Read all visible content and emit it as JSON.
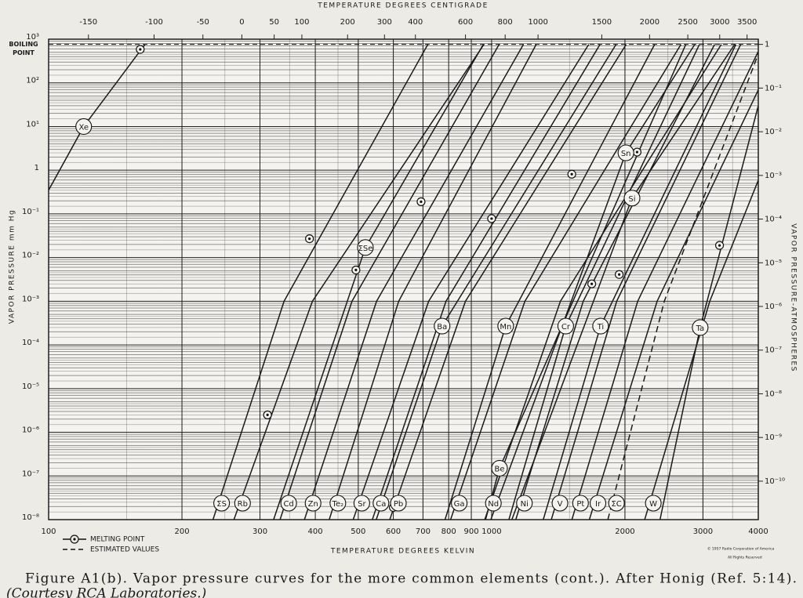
{
  "chart_data": {
    "type": "line",
    "title": "TEMPERATURE DEGREES CENTIGRADE",
    "x_label": "TEMPERATURE DEGREES KELVIN",
    "y_label": "VAPOR PRESSURE mm Hg",
    "y2_label": "VAPOR PRESSURE-ATMOSPHERES",
    "x_scale": "log",
    "y_scale": "log",
    "y2_scale": "log",
    "x2_scale": "log",
    "xlim": [
      100,
      4000
    ],
    "xticks": [
      100,
      200,
      300,
      400,
      500,
      600,
      700,
      800,
      900,
      1000,
      2000,
      3000,
      4000
    ],
    "x2lim": [
      -173,
      3727
    ],
    "x2ticks": [
      -150,
      -100,
      -50,
      0,
      50,
      100,
      200,
      300,
      400,
      600,
      800,
      1000,
      1500,
      2000,
      2500,
      3000,
      3500
    ],
    "ylim": [
      1e-08,
      1000
    ],
    "yticks": [
      {
        "value": 1e-08,
        "label": "10⁻⁸"
      },
      {
        "value": 1e-07,
        "label": "10⁻⁷"
      },
      {
        "value": 1e-06,
        "label": "10⁻⁶"
      },
      {
        "value": 1e-05,
        "label": "10⁻⁵"
      },
      {
        "value": 0.0001,
        "label": "10⁻⁴"
      },
      {
        "value": 0.001,
        "label": "10⁻³"
      },
      {
        "value": 0.01,
        "label": "10⁻²"
      },
      {
        "value": 0.1,
        "label": "10⁻¹"
      },
      1,
      {
        "value": 10,
        "label": "10¹"
      },
      {
        "value": 100,
        "label": "10²"
      },
      {
        "value": 1000,
        "label": "10³"
      }
    ],
    "y2lim": [
      1.316e-11,
      1.316
    ],
    "y2ticks": [
      1,
      {
        "value": 0.1,
        "label": "10⁻¹"
      },
      {
        "value": 0.01,
        "label": "10⁻²"
      },
      {
        "value": 0.001,
        "label": "10⁻³"
      },
      {
        "value": 0.0001,
        "label": "10⁻⁴"
      },
      {
        "value": 1e-05,
        "label": "10⁻⁵"
      },
      {
        "value": 1e-06,
        "label": "10⁻⁶"
      },
      {
        "value": 1e-07,
        "label": "10⁻⁷"
      },
      {
        "value": 1e-08,
        "label": "10⁻⁸"
      },
      {
        "value": 1e-09,
        "label": "10⁻⁹"
      },
      {
        "value": 1e-10,
        "label": "10⁻¹⁰"
      }
    ],
    "grid": true,
    "minor_grid": true,
    "color": "#1a1a1a",
    "boiling_point": {
      "label": [
        "BOILING",
        "POINT"
      ],
      "y2": 1
    },
    "legend": [
      "MELTING POINT",
      "ESTIMATED VALUES"
    ],
    "copyright": [
      "© 1957 Radio Corporation of America",
      "All Rights Reserved"
    ],
    "caption": [
      "Figure A1(b). Vapor pressure curves for the more common elements (cont.). After Honig (Ref. 5:14).",
      "(Courtesy RCA Laboratories.)"
    ],
    "series": [
      {
        "name": "Xe",
        "x": [
          100,
          120,
          165
        ],
        "values": [
          0.35,
          10,
          760
        ],
        "label_placement": "curve",
        "melting_point": {
          "x": 161,
          "y": 585
        }
      },
      {
        "name": "ΣS",
        "x": [
          235,
          340,
          718
        ],
        "values": [
          1e-08,
          0.001,
          760
        ],
        "label_placement": "bottom",
        "melting_point": {
          "x": 388,
          "y": 0.027
        }
      },
      {
        "name": "Rb",
        "x": [
          262,
          394,
          961
        ],
        "values": [
          1e-08,
          0.001,
          760
        ],
        "label_placement": "bottom",
        "melting_point": {
          "x": 312,
          "y": 2.5e-06
        }
      },
      {
        "name": "Cd",
        "x": [
          333,
          484,
          1040
        ],
        "values": [
          1e-08,
          0.001,
          760
        ],
        "label_placement": "bottom"
      },
      {
        "name": "Zn",
        "x": [
          378,
          550,
          1180
        ],
        "values": [
          1e-08,
          0.001,
          760
        ],
        "label_placement": "bottom",
        "melting_point": {
          "x": 693,
          "y": 0.19
        }
      },
      {
        "name": "Te₂",
        "x": [
          430,
          617,
          1261
        ],
        "values": [
          1e-08,
          0.001,
          760
        ],
        "label_placement": "bottom"
      },
      {
        "name": "Sr",
        "x": [
          487,
          721,
          1657
        ],
        "values": [
          1e-08,
          0.001,
          760
        ],
        "label_placement": "bottom"
      },
      {
        "name": "Ca",
        "x": [
          538,
          789,
          1757
        ],
        "values": [
          1e-08,
          0.001,
          760
        ],
        "label_placement": "bottom"
      },
      {
        "name": "Pb",
        "x": [
          589,
          873,
          2013
        ],
        "values": [
          1e-08,
          0.001,
          760
        ],
        "label_placement": "bottom",
        "melting_point": {
          "x": 600,
          "y": 1.9e-08
        }
      },
      {
        "name": "ΣSe",
        "x": [
          322,
          519,
          958
        ],
        "values": [
          1e-08,
          0.017,
          760
        ],
        "label_placement": "curve",
        "melting_point": {
          "x": 494,
          "y": 0.0052
        }
      },
      {
        "name": "Ba",
        "x": [
          549,
          773,
          1910
        ],
        "values": [
          1e-08,
          0.00027,
          760
        ],
        "label_placement": "curve",
        "melting_point": {
          "x": 1000,
          "y": 0.078
        }
      },
      {
        "name": "Ga",
        "x": [
          808,
          1189,
          2676
        ],
        "values": [
          1e-08,
          0.001,
          760
        ],
        "label_placement": "bottom"
      },
      {
        "name": "Nd",
        "x": [
          965,
          1430,
          3300
        ],
        "values": [
          1e-08,
          0.001,
          760
        ],
        "label_placement": "bottom"
      },
      {
        "name": "Mn",
        "x": [
          785,
          1076,
          2334
        ],
        "values": [
          1e-08,
          0.00027,
          760
        ],
        "label_placement": "curve",
        "melting_point": {
          "x": 1517,
          "y": 0.81
        }
      },
      {
        "name": "Be",
        "x": [
          969,
          1042,
          2744
        ],
        "values": [
          1e-08,
          1.5e-07,
          760
        ],
        "label_placement": "curve"
      },
      {
        "name": "Ni",
        "x": [
          1134,
          1610,
          3187
        ],
        "values": [
          1e-08,
          0.001,
          760
        ],
        "label_placement": "bottom"
      },
      {
        "name": "Cr",
        "x": [
          1094,
          1470,
          2945
        ],
        "values": [
          1e-08,
          0.00027,
          760
        ],
        "label_placement": "curve",
        "melting_point": {
          "x": 2130,
          "y": 2.6
        }
      },
      {
        "name": "V",
        "x": [
          1364,
          1916,
          3650
        ],
        "values": [
          1e-08,
          0.001,
          760
        ],
        "label_placement": "bottom"
      },
      {
        "name": "Pt",
        "x": [
          1518,
          2137,
          4000
        ],
        "values": [
          1e-08,
          0.001,
          525
        ],
        "label_placement": "bottom"
      },
      {
        "name": "Ir",
        "x": [
          1662,
          2364,
          4000
        ],
        "values": [
          1e-08,
          0.001,
          69
        ],
        "label_placement": "bottom"
      },
      {
        "name": "Ti",
        "x": [
          1308,
          1762,
          3560
        ],
        "values": [
          1e-08,
          0.00027,
          760
        ],
        "label_placement": "curve",
        "melting_point": {
          "x": 1941,
          "y": 0.0041
        }
      },
      {
        "name": "Sn",
        "x": [
          996,
          2010,
          2875
        ],
        "values": [
          1e-08,
          2.5,
          760
        ],
        "label_placement": "curve"
      },
      {
        "name": "Si",
        "x": [
          1111,
          2075,
          3538
        ],
        "values": [
          1e-08,
          0.23,
          760
        ],
        "label_placement": "curve",
        "melting_point": {
          "x": 1683,
          "y": 0.0025
        }
      },
      {
        "name": "ΣC",
        "x": [
          1830,
          2454,
          4000
        ],
        "values": [
          1e-08,
          0.001,
          460
        ],
        "label_placement": "bottom",
        "line_style": "dashed"
      },
      {
        "name": "W",
        "x": [
          2216,
          3108,
          4000
        ],
        "values": [
          1e-08,
          0.001,
          0.59
        ],
        "label_placement": "bottom"
      },
      {
        "name": "Ta",
        "x": [
          2400,
          2957,
          4000
        ],
        "values": [
          1e-08,
          0.00025,
          30
        ],
        "label_placement": "curve",
        "melting_point": {
          "x": 3270,
          "y": 0.019
        }
      }
    ]
  }
}
